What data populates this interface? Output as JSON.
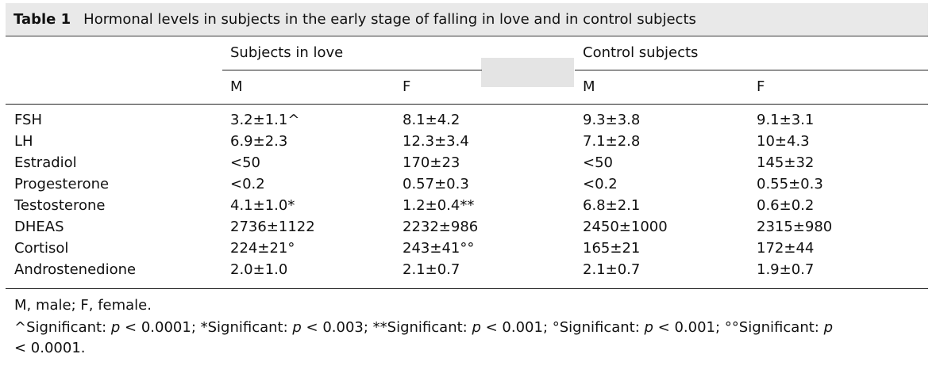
{
  "table": {
    "label": "Table 1",
    "caption": "Hormonal levels in subjects in the early stage of falling in love and in control subjects",
    "group_headers": [
      "Subjects in love",
      "Control subjects"
    ],
    "sub_headers": [
      "M",
      "F",
      "M",
      "F"
    ],
    "rows": [
      {
        "name": "FSH",
        "cells": [
          "3.2±1.1^",
          "8.1±4.2",
          "9.3±3.8",
          "9.1±3.1"
        ]
      },
      {
        "name": "LH",
        "cells": [
          "6.9±2.3",
          "12.3±3.4",
          "7.1±2.8",
          "10±4.3"
        ]
      },
      {
        "name": "Estradiol",
        "cells": [
          "<50",
          "170±23",
          "<50",
          "145±32"
        ]
      },
      {
        "name": "Progesterone",
        "cells": [
          "<0.2",
          "0.57±0.3",
          "<0.2",
          "0.55±0.3"
        ]
      },
      {
        "name": "Testosterone",
        "cells": [
          "4.1±1.0*",
          "1.2±0.4**",
          "6.8±2.1",
          "0.6±0.2"
        ]
      },
      {
        "name": "DHEAS",
        "cells": [
          "2736±1122",
          "2232±986",
          "2450±1000",
          "2315±980"
        ]
      },
      {
        "name": "Cortisol",
        "cells": [
          "224±21°",
          "243±41°°",
          "165±21",
          "172±44"
        ]
      },
      {
        "name": "Androstenedione",
        "cells": [
          "2.0±1.0",
          "2.1±0.7",
          "2.1±0.7",
          "1.9±0.7"
        ]
      }
    ],
    "footnote_abbrev": "M, male; F, female.",
    "footnote_sig_line1": {
      "a": "^Significant: ",
      "a_p": "p",
      "a_rest": " < 0.0001; ",
      "b": "*Significant: ",
      "b_p": "p",
      "b_rest": " < 0.003; ",
      "c": "**Significant: ",
      "c_p": "p",
      "c_rest": " < 0.001; ",
      "d": "°Significant: ",
      "d_p": "p",
      "d_rest": " < 0.001; ",
      "e": "°°Significant: ",
      "e_p": "p"
    },
    "footnote_sig_line2": "< 0.0001."
  }
}
